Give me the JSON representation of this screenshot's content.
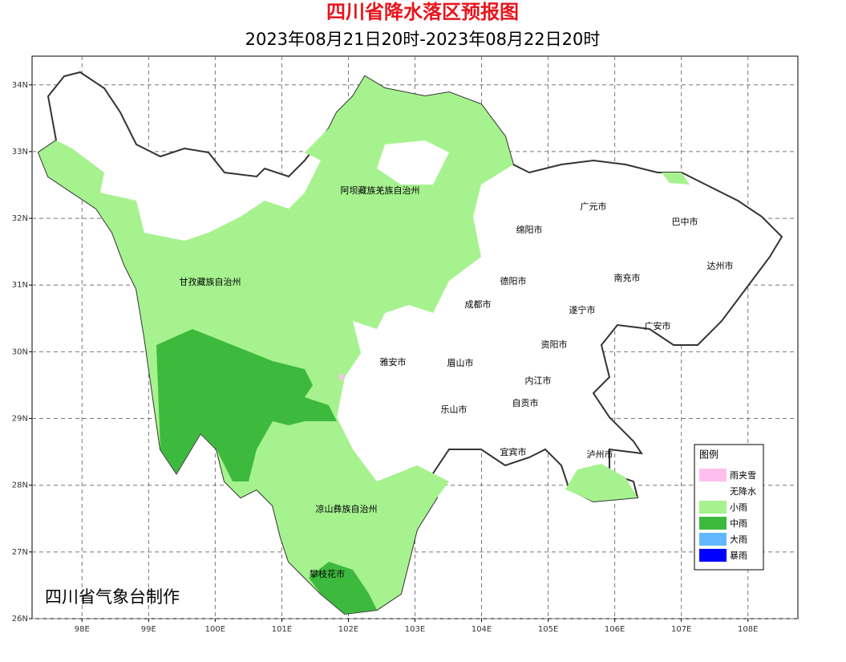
{
  "map": {
    "title": "四川省降水落区预报图",
    "subtitle": "2023年08月21日20时-2023年08月22日20时",
    "credit": "四川省气象台制作",
    "xlim": [
      97.25,
      108.75
    ],
    "ylim": [
      26,
      34.43
    ],
    "xticks": [
      {
        "value": 98,
        "label": "98E"
      },
      {
        "value": 99,
        "label": "99E"
      },
      {
        "value": 100,
        "label": "100E"
      },
      {
        "value": 101,
        "label": "101E"
      },
      {
        "value": 102,
        "label": "102E"
      },
      {
        "value": 103,
        "label": "103E"
      },
      {
        "value": 104,
        "label": "104E"
      },
      {
        "value": 105,
        "label": "105E"
      },
      {
        "value": 106,
        "label": "106E"
      },
      {
        "value": 107,
        "label": "107E"
      },
      {
        "value": 108,
        "label": "108E"
      }
    ],
    "yticks": [
      {
        "value": 26,
        "label": "26N"
      },
      {
        "value": 27,
        "label": "27N"
      },
      {
        "value": 28,
        "label": "28N"
      },
      {
        "value": 29,
        "label": "29N"
      },
      {
        "value": 30,
        "label": "30N"
      },
      {
        "value": 31,
        "label": "31N"
      },
      {
        "value": 32,
        "label": "32N"
      },
      {
        "value": 33,
        "label": "33N"
      },
      {
        "value": 34,
        "label": "34N"
      }
    ],
    "grid": true,
    "cities": [
      "阿坝藏族羌族自治州",
      "广元市",
      "巴中市",
      "绵阳市",
      "达州市",
      "甘孜藏族自治州",
      "德阳市",
      "南充市",
      "成都市",
      "遂宁市",
      "广安市",
      "资阳市",
      "雅安市",
      "眉山市",
      "内江市",
      "自贡市",
      "乐山市",
      "宜宾市",
      "泸州市",
      "凉山彝族自治州",
      "攀枝花市"
    ],
    "legend": {
      "title": "图例",
      "items": [
        {
          "name": "雨夹雪",
          "color": "#ffbfee"
        },
        {
          "name": "无降水",
          "color": "#ffffff"
        },
        {
          "name": "小雨",
          "color": "#a6f28f"
        },
        {
          "name": "中雨",
          "color": "#3dba3d"
        },
        {
          "name": "大雨",
          "color": "#61b8ff"
        },
        {
          "name": "暴雨",
          "color": "#0000fe"
        }
      ]
    }
  }
}
